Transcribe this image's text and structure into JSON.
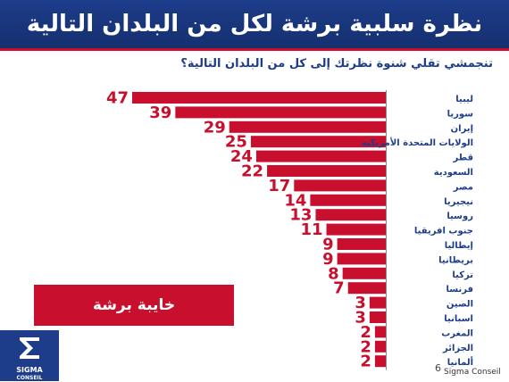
{
  "header": {
    "title": "نظرة سلبية برشة لكل من البلدان التالية"
  },
  "question": "تنجمشي تقلي شنوة نظرتك إلى كل من البلدان التالية؟",
  "tag_label": "خايبة برشة",
  "logo": {
    "line1": "SIGMA",
    "line2": "CONSEIL"
  },
  "page_number": "6",
  "source": "Sigma Conseil",
  "colors": {
    "header": "#1d3c8a",
    "bar": "#c8102e",
    "value": "#c8102e",
    "label": "#1d3c8a"
  },
  "chart_data": {
    "type": "bar",
    "orientation": "horizontal",
    "categories": [
      "ليبيا",
      "سوريا",
      "إيران",
      "الولايات المتحدة الأمريكية",
      "قطر",
      "السعودية",
      "مصر",
      "نيجيريا",
      "روسيا",
      "جنوب افريقيا",
      "إيطاليا",
      "بريطانيا",
      "تركيا",
      "فرنسا",
      "الصين",
      "اسبانيا",
      "المغرب",
      "الجزائر",
      "ألمانيا"
    ],
    "values": [
      47,
      39,
      29,
      25,
      24,
      22,
      17,
      14,
      13,
      11,
      9,
      9,
      8,
      7,
      3,
      3,
      2,
      2,
      2
    ],
    "xlim": [
      0,
      50
    ]
  }
}
